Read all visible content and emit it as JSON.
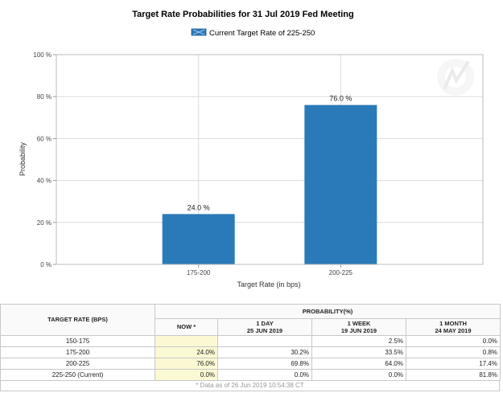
{
  "chart_data": {
    "type": "bar",
    "title": "Target Rate Probabilities for 31 Jul 2019 Fed Meeting",
    "legend": "Current Target Rate of 225-250",
    "xlabel": "Target Rate (in bps)",
    "ylabel": "Probability",
    "categories": [
      "175-200",
      "200-225"
    ],
    "values": [
      24.0,
      76.0
    ],
    "data_labels": [
      "24.0 %",
      "76.0 %"
    ],
    "ylim": [
      0,
      100
    ],
    "yticks": [
      0,
      20,
      40,
      60,
      80,
      100
    ],
    "ytick_labels": [
      "0 %",
      "20 %",
      "40 %",
      "60 %",
      "80 %",
      "100 %"
    ],
    "grid": true,
    "legend_position": "top-center",
    "colors": {
      "bar": "#2a7ab9",
      "grid": "#dcdcdc"
    }
  },
  "table": {
    "rate_header": "TARGET RATE (BPS)",
    "prob_header": "PROBABILITY(%)",
    "columns": [
      {
        "line1": "NOW *",
        "line2": ""
      },
      {
        "line1": "1 DAY",
        "line2": "25 JUN 2019"
      },
      {
        "line1": "1 WEEK",
        "line2": "19 JUN 2019"
      },
      {
        "line1": "1 MONTH",
        "line2": "24 MAY 2019"
      }
    ],
    "rows": [
      {
        "rate": "150-175",
        "cells": [
          "",
          "",
          "2.5%",
          "0.0%"
        ]
      },
      {
        "rate": "175-200",
        "cells": [
          "24.0%",
          "30.2%",
          "33.5%",
          "0.8%"
        ]
      },
      {
        "rate": "200-225",
        "cells": [
          "76.0%",
          "69.8%",
          "64.0%",
          "17.4%"
        ]
      },
      {
        "rate": "225-250 (Current)",
        "cells": [
          "0.0%",
          "0.0%",
          "0.0%",
          "81.8%"
        ]
      }
    ],
    "footnote": "* Data as of 26 Jun 2019 10:54:38 CT"
  }
}
